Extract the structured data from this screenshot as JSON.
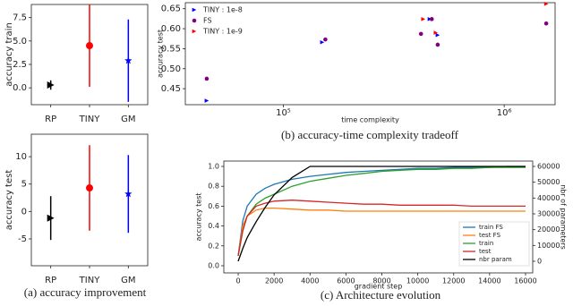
{
  "chart_data": [
    {
      "type": "errorbar",
      "ylabel": "accuracy train",
      "categories": [
        "RP",
        "TINY",
        "GM"
      ],
      "values": [
        0.3,
        4.5,
        2.9
      ],
      "errors": [
        0.5,
        4.4,
        4.4
      ],
      "colors": [
        "#000000",
        "#ff0000",
        "#0000ff"
      ],
      "markers": [
        "triangle-right",
        "circle",
        "star"
      ],
      "ylim": [
        -1.8,
        8.9
      ],
      "yticks": [
        {
          "value": 0,
          "label": "0.0"
        },
        2.5,
        {
          "value": 5,
          "label": "5.0"
        },
        7.5
      ]
    },
    {
      "type": "errorbar",
      "ylabel": "accuracy test",
      "categories": [
        "RP",
        "TINY",
        "GM"
      ],
      "values": [
        -1.2,
        4.3,
        3.2
      ],
      "errors": [
        4.0,
        7.8,
        7.1
      ],
      "colors": [
        "#000000",
        "#ff0000",
        "#0000ff"
      ],
      "markers": [
        "triangle-right",
        "circle",
        "star"
      ],
      "ylim": [
        -9.9,
        14.1
      ],
      "yticks": [
        -5,
        0,
        5,
        10
      ],
      "caption": "(a) accuracy improvement"
    },
    {
      "type": "scatter",
      "xlabel": "time complexity",
      "ylabel": "accuracy test",
      "xlog": true,
      "xlim": [
        36000,
        1700000
      ],
      "ylim": [
        0.41,
        0.665
      ],
      "xticks": [
        {
          "value": 100000,
          "label": "10⁵"
        },
        {
          "value": 1000000,
          "label": "10⁶"
        }
      ],
      "yticks": [
        0.45,
        {
          "value": 0.5,
          "label": "0.50"
        },
        0.55,
        {
          "value": 0.6,
          "label": "0.60"
        },
        0.65
      ],
      "legend": "upper left",
      "series": [
        {
          "name": "TINY : 1e-8",
          "color": "#0000ff",
          "marker": "triangle-right",
          "x": [
            45000,
            150000,
            460000,
            500000
          ],
          "y": [
            0.42,
            0.566,
            0.624,
            0.584
          ]
        },
        {
          "name": "FS",
          "color": "#800080",
          "marker": "circle",
          "x": [
            45000,
            155000,
            420000,
            470000,
            500000,
            1550000
          ],
          "y": [
            0.475,
            0.573,
            0.587,
            0.624,
            0.56,
            0.613
          ]
        },
        {
          "name": "TINY : 1e-9",
          "color": "#ff0000",
          "marker": "triangle-right",
          "x": [
            430000,
            490000,
            1550000
          ],
          "y": [
            0.624,
            0.59,
            0.662
          ]
        }
      ],
      "caption": "(b) accuracy-time complexity tradeoff"
    },
    {
      "type": "line",
      "xlabel": "gradient step",
      "ylabel": "accuracy test",
      "y2label": "nbr of parameters",
      "x": [
        0,
        250,
        500,
        1000,
        1500,
        2000,
        3000,
        4000,
        5000,
        6000,
        7000,
        8000,
        9000,
        10000,
        11000,
        12000,
        13000,
        14000,
        15000,
        16000
      ],
      "xlim": [
        -800,
        16400
      ],
      "ylim": [
        -0.072,
        1.054
      ],
      "y2lim": [
        -7360,
        63400
      ],
      "xticks": [
        0,
        2000,
        4000,
        6000,
        8000,
        10000,
        12000,
        14000,
        16000
      ],
      "yticks": [
        {
          "value": 0,
          "label": "0.0"
        },
        0.2,
        0.4,
        0.6,
        0.8,
        {
          "value": 1,
          "label": "1.0"
        }
      ],
      "y2ticks": [
        0,
        10000,
        20000,
        30000,
        40000,
        50000,
        60000
      ],
      "legend": "lower right",
      "series": [
        {
          "name": "train FS",
          "color": "#1f77b4",
          "values": [
            0.1,
            0.45,
            0.6,
            0.72,
            0.78,
            0.82,
            0.87,
            0.9,
            0.92,
            0.94,
            0.95,
            0.96,
            0.97,
            0.98,
            0.98,
            0.99,
            0.99,
            0.99,
            1.0,
            1.0
          ]
        },
        {
          "name": "test FS",
          "color": "#ff7f0e",
          "values": [
            0.1,
            0.4,
            0.5,
            0.56,
            0.58,
            0.58,
            0.57,
            0.56,
            0.56,
            0.55,
            0.55,
            0.55,
            0.55,
            0.55,
            0.55,
            0.55,
            0.55,
            0.55,
            0.55,
            0.55
          ]
        },
        {
          "name": "train",
          "color": "#2ca02c",
          "values": [
            0.1,
            0.35,
            0.5,
            0.62,
            0.68,
            0.72,
            0.8,
            0.85,
            0.88,
            0.91,
            0.93,
            0.95,
            0.96,
            0.97,
            0.97,
            0.98,
            0.98,
            0.99,
            0.99,
            0.99
          ]
        },
        {
          "name": "test",
          "color": "#d62728",
          "values": [
            0.1,
            0.35,
            0.5,
            0.6,
            0.63,
            0.65,
            0.66,
            0.65,
            0.64,
            0.63,
            0.62,
            0.62,
            0.61,
            0.61,
            0.61,
            0.61,
            0.6,
            0.6,
            0.6,
            0.6
          ]
        },
        {
          "name": "nbr param",
          "color": "#000000",
          "axis": "y2",
          "values": [
            0,
            8000,
            15000,
            25000,
            34000,
            42000,
            53000,
            60000,
            60000,
            60000,
            60000,
            60000,
            60000,
            60000,
            60000,
            60000,
            60000,
            60000,
            60000,
            60000
          ]
        }
      ],
      "caption": "(c) Architecture evolution"
    }
  ]
}
